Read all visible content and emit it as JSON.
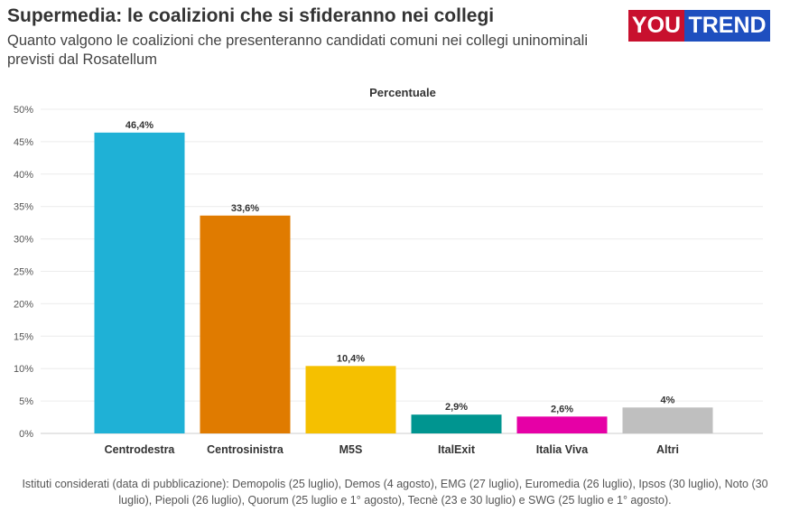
{
  "header": {
    "title": "Supermedia: le coalizioni che si sfideranno nei collegi",
    "subtitle": "Quanto valgono le coalizioni che presenteranno candidati comuni nei collegi uninominali previsti dal Rosatellum",
    "logo_you": "YOU",
    "logo_trend": "TREND"
  },
  "chart_data": {
    "type": "bar",
    "title": "Percentuale",
    "categories": [
      "Centrodestra",
      "Centrosinistra",
      "M5S",
      "ItalExit",
      "Italia Viva",
      "Altri"
    ],
    "values": [
      46.4,
      33.6,
      10.4,
      2.9,
      2.6,
      4
    ],
    "labels": [
      "46,4%",
      "33,6%",
      "10,4%",
      "2,9%",
      "2,6%",
      "4%"
    ],
    "colors": [
      "#1fb1d6",
      "#e07b00",
      "#f5c000",
      "#009590",
      "#e600a6",
      "#bfbfbf"
    ],
    "ylim": [
      0,
      50
    ],
    "yticks": [
      0,
      5,
      10,
      15,
      20,
      25,
      30,
      35,
      40,
      45,
      50
    ],
    "ytick_labels": [
      "0%",
      "5%",
      "10%",
      "15%",
      "20%",
      "25%",
      "30%",
      "35%",
      "40%",
      "45%",
      "50%"
    ],
    "grid": true
  },
  "footer": "Istituti considerati (data di pubblicazione): Demopolis (25 luglio), Demos (4 agosto), EMG (27 luglio), Euromedia (26 luglio), Ipsos (30 luglio), Noto (30 luglio), Piepoli (26 luglio), Quorum (25 luglio e 1° agosto), Tecnè (23 e 30 luglio) e SWG (25 luglio e 1° agosto)."
}
